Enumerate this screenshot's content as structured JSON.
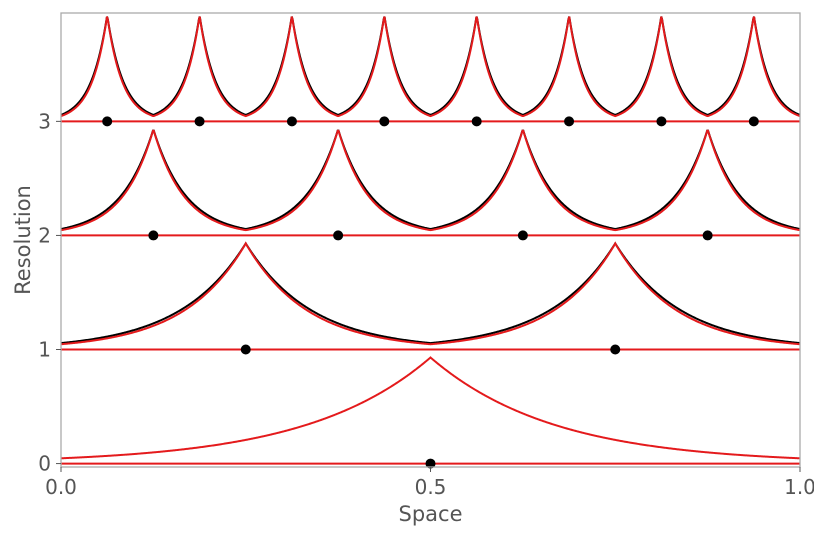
{
  "chart_data": {
    "type": "line",
    "title": "",
    "xlabel": "Space",
    "ylabel": "Resolution",
    "xlim": [
      0.0,
      1.0
    ],
    "ylim": [
      -0.03,
      3.95
    ],
    "x_ticks": [
      0.0,
      0.5,
      1.0
    ],
    "x_tick_labels": [
      "0.0",
      "0.5",
      "1.0"
    ],
    "y_ticks": [
      0,
      1,
      2,
      3
    ],
    "y_tick_labels": [
      "0",
      "1",
      "2",
      "3"
    ],
    "grid": false,
    "legend": "none",
    "colors": {
      "fit": "#000000",
      "model": "#e41a1c",
      "frame": "#aaaaaa",
      "points": "#000000"
    },
    "peak_height": 0.93,
    "levels": [
      {
        "resolution": 0,
        "centers": [
          0.5
        ]
      },
      {
        "resolution": 1,
        "centers": [
          0.25,
          0.75
        ]
      },
      {
        "resolution": 2,
        "centers": [
          0.125,
          0.375,
          0.625,
          0.875
        ]
      },
      {
        "resolution": 3,
        "centers": [
          0.0625,
          0.1875,
          0.3125,
          0.4375,
          0.5625,
          0.6875,
          0.8125,
          0.9375
        ]
      }
    ]
  }
}
